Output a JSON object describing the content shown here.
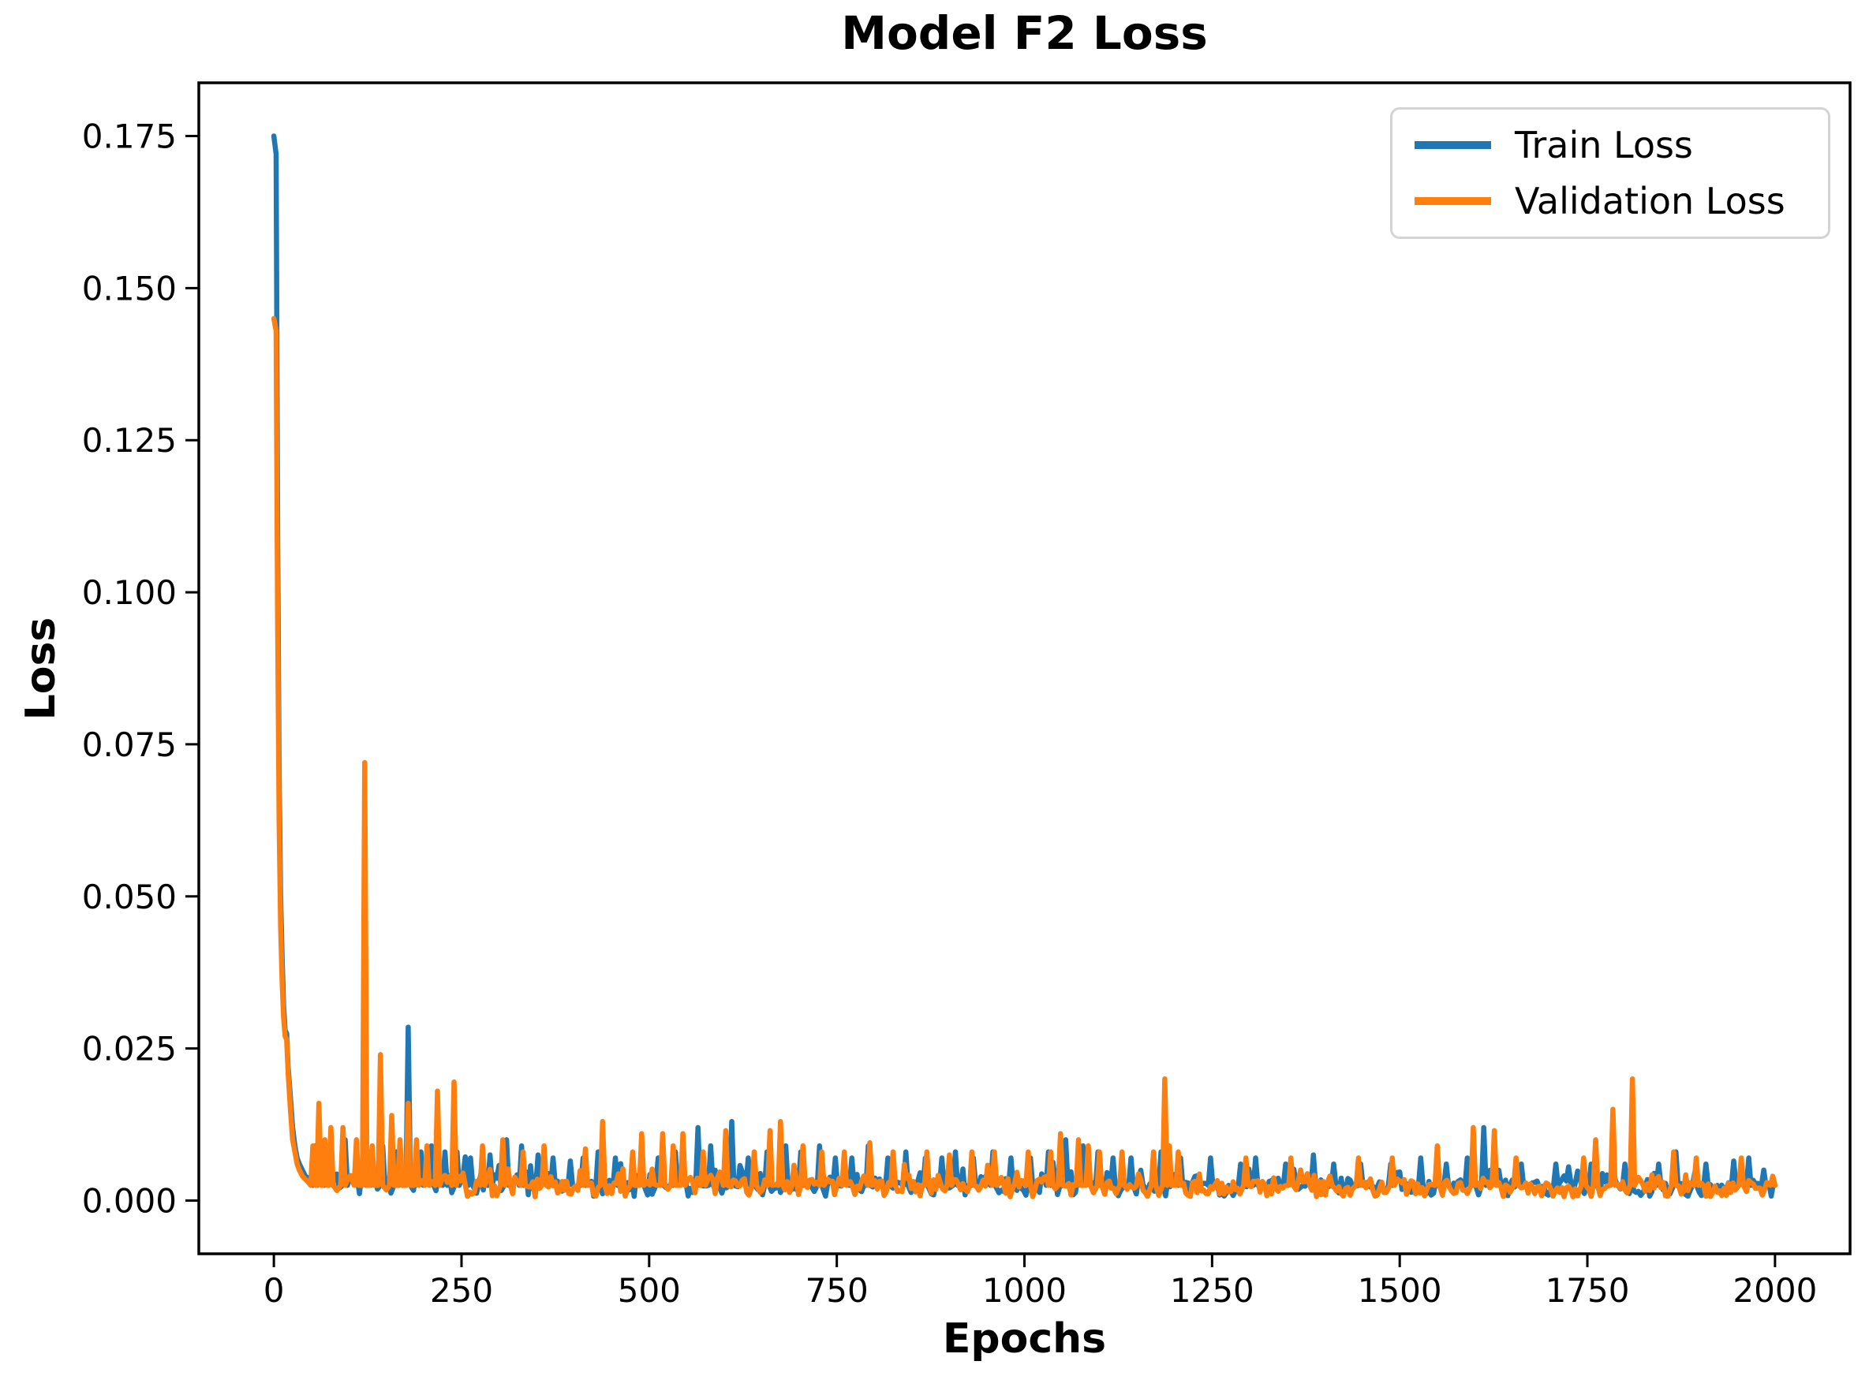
{
  "chart_data": {
    "type": "line",
    "title": "Model F2 Loss",
    "xlabel": "Epochs",
    "ylabel": "Loss",
    "xlim": [
      -100,
      2100
    ],
    "ylim": [
      -0.00875,
      0.18375
    ],
    "xticks": [
      0,
      250,
      500,
      750,
      1000,
      1250,
      1500,
      1750,
      2000
    ],
    "yticks": [
      0.0,
      0.025,
      0.05,
      0.075,
      0.1,
      0.125,
      0.15,
      0.175
    ],
    "ytick_decimals": 3,
    "grid": false,
    "spine_color": "#000000",
    "legend": {
      "position": "upper right"
    },
    "series": [
      {
        "name": "Train Loss",
        "color": "#1f77b4",
        "max_value": 0.175,
        "descent": [
          [
            0,
            0.175
          ],
          [
            3,
            0.172
          ],
          [
            5,
            0.11
          ],
          [
            7,
            0.07
          ],
          [
            9,
            0.05
          ],
          [
            11,
            0.04
          ],
          [
            13,
            0.032
          ],
          [
            15,
            0.028
          ],
          [
            17,
            0.0275
          ],
          [
            19,
            0.022
          ],
          [
            22,
            0.017
          ],
          [
            25,
            0.012
          ],
          [
            28,
            0.009
          ],
          [
            31,
            0.007
          ],
          [
            34,
            0.006
          ],
          [
            38,
            0.005
          ],
          [
            42,
            0.004
          ],
          [
            46,
            0.0035
          ]
        ],
        "spikes": [
          [
            55,
            0.009
          ],
          [
            70,
            0.008
          ],
          [
            95,
            0.01
          ],
          [
            126,
            0.008
          ],
          [
            145,
            0.009
          ],
          [
            163,
            0.008
          ],
          [
            179,
            0.0285
          ],
          [
            196,
            0.008
          ],
          [
            210,
            0.009
          ],
          [
            228,
            0.008
          ],
          [
            244,
            0.008
          ],
          [
            262,
            0.007
          ],
          [
            288,
            0.0075
          ],
          [
            310,
            0.01
          ],
          [
            330,
            0.009
          ],
          [
            352,
            0.0075
          ],
          [
            372,
            0.007
          ],
          [
            395,
            0.0065
          ],
          [
            412,
            0.007
          ],
          [
            432,
            0.008
          ],
          [
            455,
            0.007
          ],
          [
            490,
            0.008
          ],
          [
            512,
            0.007
          ],
          [
            535,
            0.008
          ],
          [
            565,
            0.012
          ],
          [
            582,
            0.009
          ],
          [
            610,
            0.013
          ],
          [
            632,
            0.007
          ],
          [
            657,
            0.008
          ],
          [
            682,
            0.009
          ],
          [
            702,
            0.008
          ],
          [
            727,
            0.009
          ],
          [
            748,
            0.007
          ],
          [
            770,
            0.007
          ],
          [
            792,
            0.009
          ],
          [
            818,
            0.007
          ],
          [
            842,
            0.008
          ],
          [
            868,
            0.007
          ],
          [
            890,
            0.007
          ],
          [
            908,
            0.008
          ],
          [
            932,
            0.007
          ],
          [
            958,
            0.008
          ],
          [
            982,
            0.007
          ],
          [
            1008,
            0.007
          ],
          [
            1032,
            0.008
          ],
          [
            1055,
            0.01
          ],
          [
            1078,
            0.009
          ],
          [
            1098,
            0.008
          ],
          [
            1118,
            0.007
          ],
          [
            1142,
            0.007
          ],
          [
            1182,
            0.008
          ],
          [
            1208,
            0.007
          ],
          [
            1248,
            0.007
          ],
          [
            1288,
            0.006
          ],
          [
            1308,
            0.007
          ],
          [
            1348,
            0.006
          ],
          [
            1385,
            0.0075
          ],
          [
            1412,
            0.006
          ],
          [
            1448,
            0.006
          ],
          [
            1488,
            0.006
          ],
          [
            1528,
            0.007
          ],
          [
            1562,
            0.006
          ],
          [
            1590,
            0.007
          ],
          [
            1612,
            0.012
          ],
          [
            1662,
            0.006
          ],
          [
            1708,
            0.006
          ],
          [
            1755,
            0.006
          ],
          [
            1800,
            0.006
          ],
          [
            1845,
            0.006
          ],
          [
            1868,
            0.008
          ],
          [
            1908,
            0.006
          ],
          [
            1945,
            0.0065
          ],
          [
            1965,
            0.007
          ],
          [
            1985,
            0.005
          ]
        ],
        "noise": {
          "seed": 7,
          "floor": 0.0007,
          "amp": 0.0038,
          "burst_p": 0.3,
          "burst_amp": 0.0032,
          "decay": 0.35,
          "step": 3,
          "start": 48,
          "end": 2000
        }
      },
      {
        "name": "Validation Loss",
        "color": "#ff7f0e",
        "max_value": 0.145,
        "descent": [
          [
            0,
            0.145
          ],
          [
            3,
            0.143
          ],
          [
            5,
            0.095
          ],
          [
            7,
            0.062
          ],
          [
            9,
            0.045
          ],
          [
            11,
            0.036
          ],
          [
            13,
            0.03
          ],
          [
            15,
            0.027
          ],
          [
            17,
            0.0265
          ],
          [
            19,
            0.021
          ],
          [
            22,
            0.015
          ],
          [
            25,
            0.01
          ],
          [
            28,
            0.008
          ],
          [
            31,
            0.006
          ],
          [
            34,
            0.005
          ],
          [
            38,
            0.004
          ],
          [
            42,
            0.0035
          ],
          [
            46,
            0.003
          ]
        ],
        "spikes": [
          [
            52,
            0.009
          ],
          [
            60,
            0.016
          ],
          [
            68,
            0.01
          ],
          [
            76,
            0.012
          ],
          [
            92,
            0.012
          ],
          [
            110,
            0.01
          ],
          [
            121,
            0.072
          ],
          [
            131,
            0.009
          ],
          [
            142,
            0.024
          ],
          [
            157,
            0.014
          ],
          [
            168,
            0.01
          ],
          [
            179,
            0.016
          ],
          [
            190,
            0.01
          ],
          [
            204,
            0.009
          ],
          [
            218,
            0.018
          ],
          [
            240,
            0.0195
          ],
          [
            278,
            0.009
          ],
          [
            305,
            0.01
          ],
          [
            332,
            0.008
          ],
          [
            360,
            0.009
          ],
          [
            415,
            0.0085
          ],
          [
            438,
            0.013
          ],
          [
            478,
            0.008
          ],
          [
            490,
            0.011
          ],
          [
            518,
            0.011
          ],
          [
            532,
            0.009
          ],
          [
            545,
            0.011
          ],
          [
            572,
            0.008
          ],
          [
            602,
            0.0115
          ],
          [
            640,
            0.008
          ],
          [
            661,
            0.0115
          ],
          [
            675,
            0.013
          ],
          [
            705,
            0.009
          ],
          [
            730,
            0.008
          ],
          [
            760,
            0.008
          ],
          [
            794,
            0.0095
          ],
          [
            825,
            0.008
          ],
          [
            870,
            0.008
          ],
          [
            900,
            0.0075
          ],
          [
            930,
            0.008
          ],
          [
            960,
            0.008
          ],
          [
            1005,
            0.008
          ],
          [
            1035,
            0.008
          ],
          [
            1048,
            0.011
          ],
          [
            1072,
            0.01
          ],
          [
            1085,
            0.009
          ],
          [
            1100,
            0.008
          ],
          [
            1130,
            0.008
          ],
          [
            1172,
            0.008
          ],
          [
            1187,
            0.02
          ],
          [
            1193,
            0.009
          ],
          [
            1205,
            0.008
          ],
          [
            1295,
            0.007
          ],
          [
            1355,
            0.007
          ],
          [
            1445,
            0.007
          ],
          [
            1490,
            0.007
          ],
          [
            1550,
            0.009
          ],
          [
            1598,
            0.012
          ],
          [
            1626,
            0.0115
          ],
          [
            1655,
            0.007
          ],
          [
            1745,
            0.007
          ],
          [
            1761,
            0.01
          ],
          [
            1784,
            0.015
          ],
          [
            1810,
            0.02
          ],
          [
            1865,
            0.008
          ],
          [
            1895,
            0.007
          ],
          [
            1955,
            0.007
          ],
          [
            1997,
            0.004
          ]
        ],
        "noise": {
          "seed": 13,
          "floor": 0.0006,
          "amp": 0.0036,
          "burst_p": 0.28,
          "burst_amp": 0.003,
          "decay": 0.35,
          "step": 3,
          "start": 48,
          "end": 2000
        }
      }
    ]
  }
}
